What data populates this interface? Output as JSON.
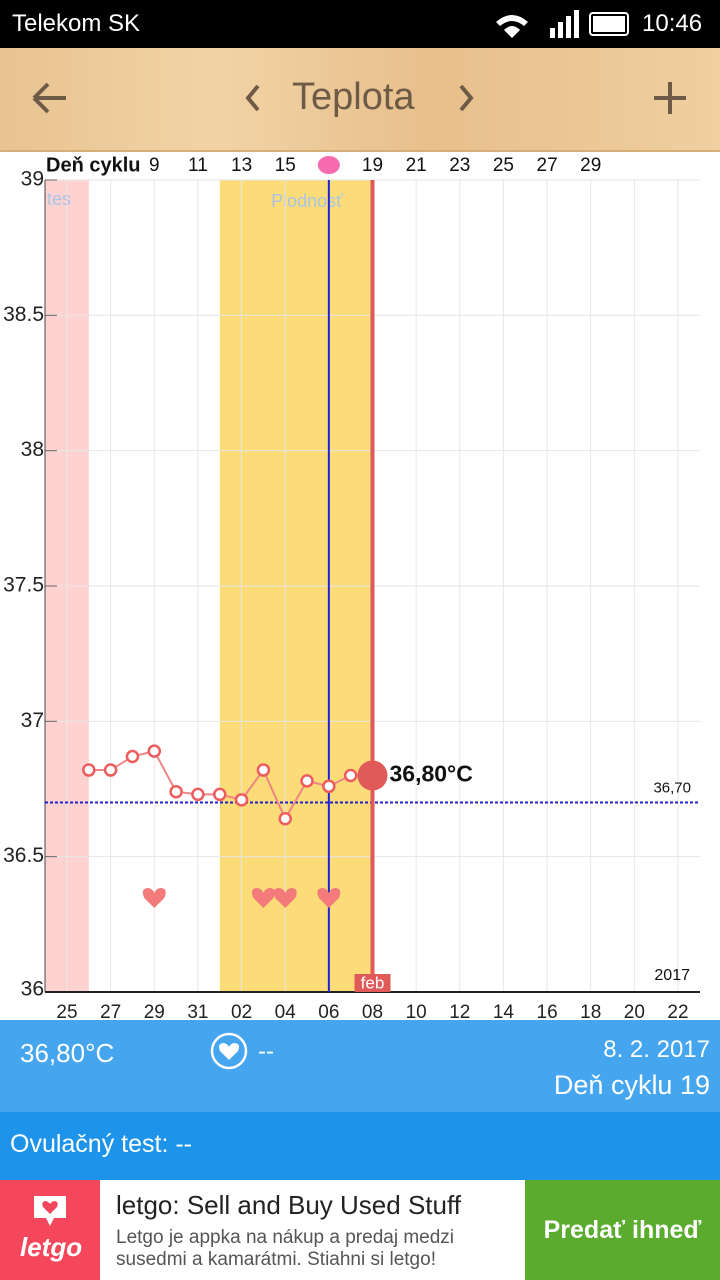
{
  "status_bar": {
    "carrier": "Telekom SK",
    "time": "10:46"
  },
  "header": {
    "title": "Teplota"
  },
  "chart_data": {
    "type": "line",
    "cycle_label": "Deň cyklu",
    "categories": [
      "25",
      null,
      "27",
      null,
      "29",
      null,
      "31",
      null,
      "02",
      null,
      "04",
      null,
      "06",
      null,
      "08",
      null,
      "10",
      null,
      "12",
      null,
      "14",
      null,
      "16",
      null,
      "18",
      null,
      "20",
      null,
      "22"
    ],
    "series": [
      {
        "name": "Teplota",
        "color": "#f08585",
        "values": [
          null,
          36.82,
          36.82,
          36.87,
          36.89,
          36.74,
          36.73,
          36.73,
          36.71,
          36.82,
          36.64,
          36.78,
          36.76,
          36.8,
          36.8,
          null,
          null,
          null,
          null,
          null,
          null,
          null,
          null,
          null,
          null,
          null,
          null,
          null,
          null
        ],
        "value_labels": [
          null,
          null,
          null,
          null,
          null,
          null,
          null,
          null,
          null,
          null,
          null,
          null,
          null,
          null,
          "36,80°C",
          null,
          null,
          null,
          null,
          null,
          null,
          null,
          null,
          null,
          null,
          null,
          null,
          null,
          null
        ]
      }
    ],
    "ylim": [
      36,
      39
    ],
    "yticks": [
      36,
      36.5,
      37,
      37.5,
      38,
      38.5,
      39
    ],
    "x2lim": [
      5,
      33
    ],
    "x2ticks": [
      9,
      11,
      13,
      15,
      19,
      21,
      23,
      25,
      27,
      29
    ],
    "reference_line": {
      "value": 36.7,
      "label": "36,70",
      "color": "#2222cc"
    },
    "fertile_label": "Plodnosť",
    "period_label": "tes",
    "month_label": "feb",
    "year_label": "2017",
    "grid": true
  },
  "summary": {
    "temperature": "36,80°C",
    "heart": "--",
    "date": "8. 2. 2017",
    "cycle_day": "Deň cyklu 19"
  },
  "ovulation": {
    "text": "Ovulačný test: --"
  },
  "ad": {
    "brand": "letgo",
    "title": "letgo: Sell and Buy Used Stuff",
    "text": "Letgo je appka na nákup a predaj medzi susedmi a kamarátmi. Stiahni si letgo!",
    "button": "Predať ihneď"
  }
}
